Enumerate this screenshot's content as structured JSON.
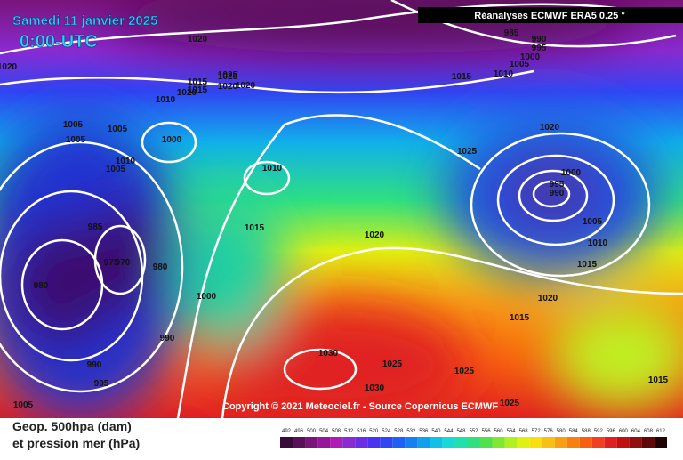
{
  "header": {
    "date": "Samedi 11 janvier 2025",
    "time": "0:00-UTC",
    "source": "Réanalyses ECMWF ERA5 0.25 °"
  },
  "copyright": "Copyright © 2021 Meteociel.fr - Source Copernicus ECMWF",
  "legend": {
    "line1": "Geop. 500hpa (dam)",
    "line2": "et pression mer (hPa)",
    "ticks": [
      492,
      496,
      500,
      504,
      508,
      512,
      516,
      520,
      524,
      528,
      532,
      536,
      540,
      544,
      548,
      552,
      556,
      560,
      564,
      568,
      572,
      576,
      580,
      584,
      588,
      592,
      596,
      600,
      604,
      608,
      612
    ],
    "colors": [
      "#3a0a3a",
      "#5a0f5a",
      "#7a147a",
      "#96189a",
      "#b01cb4",
      "#8a2ad0",
      "#6a2ee6",
      "#4a34f0",
      "#3046f4",
      "#2060f4",
      "#1680f0",
      "#10a0ec",
      "#10c0e8",
      "#18d8d8",
      "#20e0b0",
      "#30e080",
      "#50e050",
      "#80e830",
      "#b0f020",
      "#e0f010",
      "#f8e010",
      "#f8c010",
      "#f8a010",
      "#f88010",
      "#f86010",
      "#f04020",
      "#e02020",
      "#c01010",
      "#901010",
      "#600808",
      "#200404"
    ]
  },
  "isobar_labels": [
    "1020",
    "1020",
    "1015",
    "1015",
    "1020",
    "1025",
    "1010",
    "1020",
    "1005",
    "1005",
    "1005",
    "1010",
    "1005",
    "1000",
    "1010",
    "1015",
    "985",
    "975",
    "970",
    "980",
    "980",
    "1000",
    "990",
    "990",
    "995",
    "1005",
    "1025",
    "1020",
    "1025",
    "1020",
    "1000",
    "995",
    "990",
    "1005",
    "1010",
    "1015",
    "1020",
    "1015",
    "1030",
    "1025",
    "1030",
    "1025",
    "1025",
    "985",
    "990",
    "995",
    "1000",
    "1005",
    "1015",
    "1010",
    "1020",
    "1015"
  ]
}
